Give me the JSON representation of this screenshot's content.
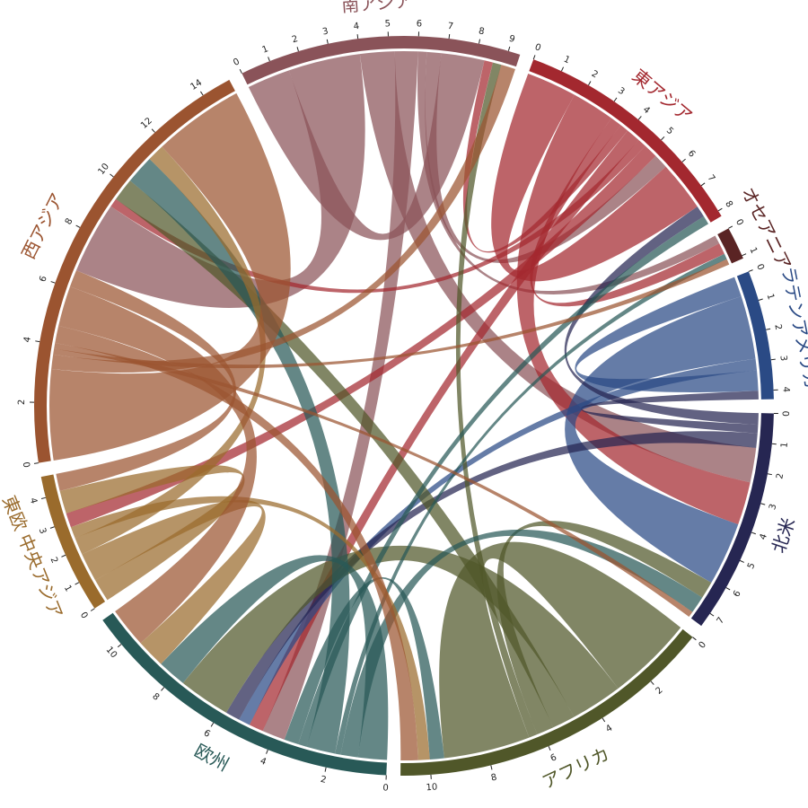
{
  "chart_data": {
    "type": "chord",
    "regions": [
      {
        "name": "南アジア",
        "color": "#8a5359",
        "ticks": [
          0,
          1,
          2,
          3,
          4,
          5,
          6,
          7,
          8,
          9
        ]
      },
      {
        "name": "東アジア",
        "color": "#a3282f",
        "ticks": [
          0,
          1,
          2,
          3,
          4,
          5,
          6,
          7,
          8
        ]
      },
      {
        "name": "オセアニア",
        "color": "#5a2424",
        "ticks": [
          0,
          1
        ]
      },
      {
        "name": "ラテンアメリカ",
        "color": "#2a4a85",
        "ticks": [
          0,
          1,
          2,
          3,
          4
        ]
      },
      {
        "name": "北米",
        "color": "#262652",
        "ticks": [
          0,
          1,
          2,
          3,
          4,
          5,
          6,
          7
        ]
      },
      {
        "name": "アフリカ",
        "color": "#505729",
        "ticks": [
          0,
          2,
          4,
          6,
          8,
          10
        ]
      },
      {
        "name": "欧州",
        "color": "#285957",
        "ticks": [
          0,
          2,
          4,
          6,
          8,
          10
        ]
      },
      {
        "name": "東欧 中央アジア",
        "color": "#9a6b2c",
        "ticks": [
          0,
          1,
          2,
          3,
          4
        ]
      },
      {
        "name": "西アジア",
        "color": "#9b5430",
        "ticks": [
          0,
          2,
          4,
          6,
          8,
          10,
          12,
          14
        ]
      }
    ],
    "flows": [
      {
        "from": "南アジア",
        "to": "南アジア",
        "value": 1.5
      },
      {
        "from": "南アジア",
        "to": "西アジア",
        "value": 2.5
      },
      {
        "from": "南アジア",
        "to": "北米",
        "value": 1.2
      },
      {
        "from": "南アジア",
        "to": "欧州",
        "value": 0.8
      },
      {
        "from": "南アジア",
        "to": "オセアニア",
        "value": 0.3
      },
      {
        "from": "南アジア",
        "to": "東アジア",
        "value": 0.5
      },
      {
        "from": "東アジア",
        "to": "東アジア",
        "value": 1.75
      },
      {
        "from": "東アジア",
        "to": "北米",
        "value": 1.5
      },
      {
        "from": "東アジア",
        "to": "オセアニア",
        "value": 0.4
      },
      {
        "from": "東アジア",
        "to": "南アジア",
        "value": 0.3
      },
      {
        "from": "東アジア",
        "to": "欧州",
        "value": 0.5
      },
      {
        "from": "東アジア",
        "to": "西アジア",
        "value": 0.3
      },
      {
        "from": "東アジア",
        "to": "東欧 中央アジア",
        "value": 0.5
      },
      {
        "from": "ラテンアメリカ",
        "to": "ラテンアメリカ",
        "value": 0.7
      },
      {
        "from": "ラテンアメリカ",
        "to": "北米",
        "value": 2.2
      },
      {
        "from": "ラテンアメリカ",
        "to": "欧州",
        "value": 0.4
      },
      {
        "from": "北米",
        "to": "東アジア",
        "value": 0.4
      },
      {
        "from": "北米",
        "to": "ラテンアメリカ",
        "value": 0.3
      },
      {
        "from": "北米",
        "to": "欧州",
        "value": 0.5
      },
      {
        "from": "アフリカ",
        "to": "アフリカ",
        "value": 3.0
      },
      {
        "from": "アフリカ",
        "to": "欧州",
        "value": 1.8
      },
      {
        "from": "アフリカ",
        "to": "西アジア",
        "value": 0.8
      },
      {
        "from": "アフリカ",
        "to": "北米",
        "value": 0.6
      },
      {
        "from": "アフリカ",
        "to": "南アジア",
        "value": 0.3
      },
      {
        "from": "欧州",
        "to": "欧州",
        "value": 1.0
      },
      {
        "from": "欧州",
        "to": "北米",
        "value": 0.6
      },
      {
        "from": "欧州",
        "to": "オセアニア",
        "value": 0.2
      },
      {
        "from": "欧州",
        "to": "西アジア",
        "value": 1.0
      },
      {
        "from": "欧州",
        "to": "東アジア",
        "value": 0.3
      },
      {
        "from": "欧州",
        "to": "アフリカ",
        "value": 0.5
      },
      {
        "from": "東欧 中央アジア",
        "to": "東欧 中央アジア",
        "value": 0.8
      },
      {
        "from": "東欧 中央アジア",
        "to": "欧州",
        "value": 1.0
      },
      {
        "from": "東欧 中央アジア",
        "to": "西アジア",
        "value": 0.6
      },
      {
        "from": "東欧 中央アジア",
        "to": "アフリカ",
        "value": 0.4
      },
      {
        "from": "西アジア",
        "to": "西アジア",
        "value": 3.15
      },
      {
        "from": "西アジア",
        "to": "南アジア",
        "value": 0.5
      },
      {
        "from": "西アジア",
        "to": "オセアニア",
        "value": 0.2
      },
      {
        "from": "西アジア",
        "to": "北米",
        "value": 0.2
      },
      {
        "from": "西アジア",
        "to": "アフリカ",
        "value": 0.6
      },
      {
        "from": "西アジア",
        "to": "欧州",
        "value": 1.4
      },
      {
        "from": "西アジア",
        "to": "東欧 中央アジア",
        "value": 0.6
      }
    ]
  }
}
